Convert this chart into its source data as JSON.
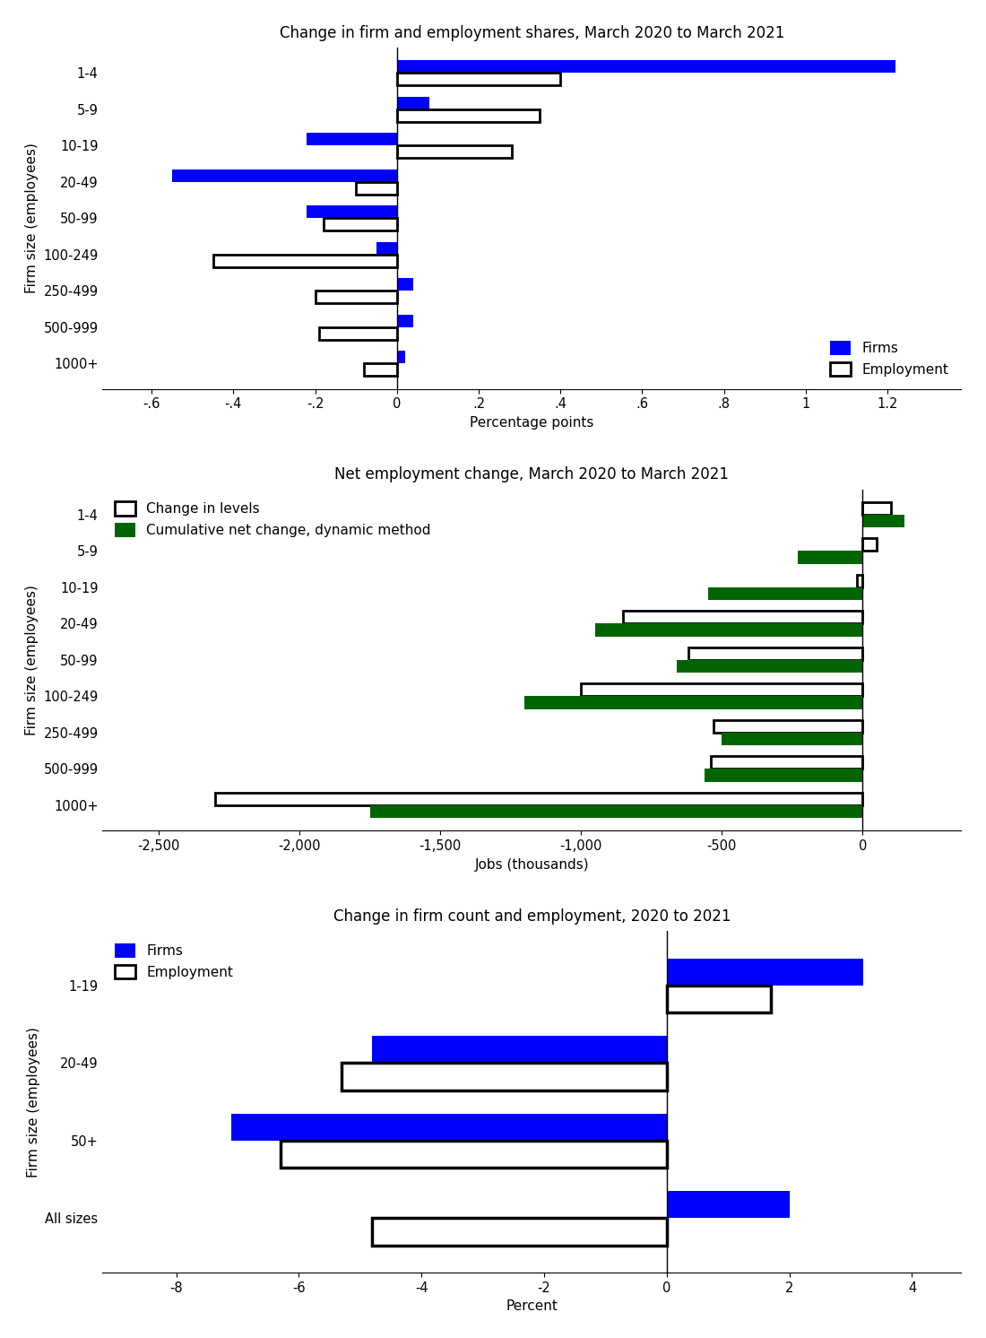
{
  "panel1": {
    "title": "Change in firm and employment shares, March 2020 to March 2021",
    "categories": [
      "1-4",
      "5-9",
      "10-19",
      "20-49",
      "50-99",
      "100-249",
      "250-499",
      "500-999",
      "1000+"
    ],
    "firms": [
      1.22,
      0.08,
      -0.22,
      -0.55,
      -0.22,
      -0.05,
      0.04,
      0.04,
      0.02
    ],
    "employment": [
      0.4,
      0.35,
      0.28,
      -0.1,
      -0.18,
      -0.45,
      -0.2,
      -0.19,
      -0.08
    ],
    "xlabel": "Percentage points",
    "ylabel": "Firm size (employees)",
    "xlim": [
      -0.72,
      1.38
    ],
    "xticks": [
      -0.6,
      -0.4,
      -0.2,
      0.0,
      0.2,
      0.4,
      0.6,
      0.8,
      1.0,
      1.2
    ],
    "xticklabels": [
      "-.6",
      "-.4",
      "-.2",
      "0",
      ".2",
      ".4",
      ".6",
      ".8",
      "1",
      "1.2"
    ]
  },
  "panel2": {
    "title": "Net employment change, March 2020 to March 2021",
    "categories": [
      "1-4",
      "5-9",
      "10-19",
      "20-49",
      "50-99",
      "100-249",
      "250-499",
      "500-999",
      "1000+"
    ],
    "levels": [
      100,
      50,
      -20,
      -850,
      -620,
      -1000,
      -530,
      -540,
      -2300
    ],
    "dynamic": [
      150,
      -230,
      -550,
      -950,
      -660,
      -1200,
      -500,
      -560,
      -1750
    ],
    "xlabel": "Jobs (thousands)",
    "ylabel": "Firm size (employees)",
    "xlim": [
      -2700,
      350
    ],
    "xticks": [
      -2500,
      -2000,
      -1500,
      -1000,
      -500,
      0
    ],
    "xticklabels": [
      "-2,500",
      "-2,000",
      "-1,500",
      "-1,000",
      "-500",
      "0"
    ]
  },
  "panel3": {
    "title": "Change in firm count and employment, 2020 to 2021",
    "categories": [
      "1-19",
      "20-49",
      "50+",
      "All sizes"
    ],
    "firms": [
      3.2,
      -4.8,
      -7.1,
      2.0
    ],
    "employment": [
      1.7,
      -5.3,
      -6.3,
      -4.8
    ],
    "xlabel": "Percent",
    "ylabel": "Firm size (employees)",
    "xlim": [
      -9.2,
      4.8
    ],
    "xticks": [
      -8,
      -6,
      -4,
      -2,
      0,
      2,
      4
    ],
    "xticklabels": [
      "-8",
      "-6",
      "-4",
      "-2",
      "0",
      "2",
      "4"
    ]
  },
  "blue_color": "#0000FF",
  "green_color": "#006400",
  "bar_height": 0.35,
  "title_fontsize": 12,
  "label_fontsize": 11,
  "tick_fontsize": 10.5
}
